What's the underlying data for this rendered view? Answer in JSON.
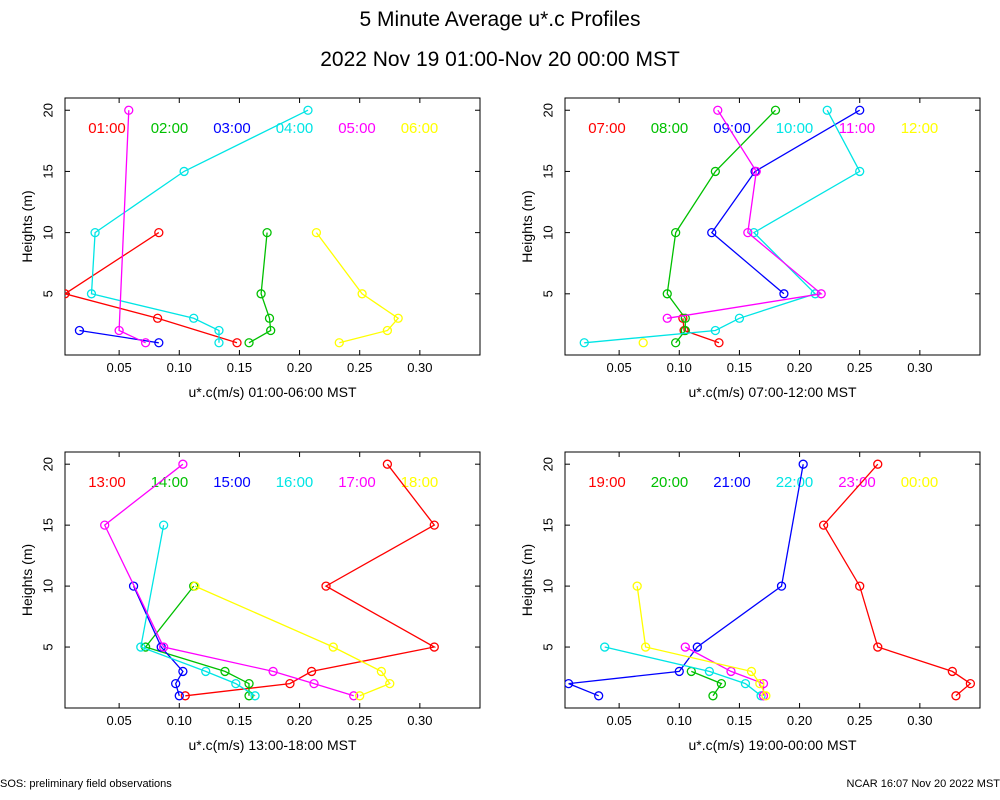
{
  "title": "5 Minute Average u*.c Profiles",
  "subtitle": "2022 Nov 19 01:00-Nov 20 00:00 MST",
  "footer_left": "SOS: preliminary field observations",
  "footer_right": "NCAR 16:07 Nov 20 2022 MST",
  "chart_data": [
    {
      "type": "line",
      "xlabel": "u*.c(m/s) 01:00-06:00 MST",
      "ylabel": "Heights (m)",
      "xlim": [
        0.005,
        0.35
      ],
      "ylim": [
        0,
        21
      ],
      "xticks": [
        "0.05",
        "0.10",
        "0.15",
        "0.20",
        "0.25",
        "0.30"
      ],
      "yticks": [
        "5",
        "10",
        "15",
        "20"
      ],
      "series": [
        {
          "name": "01:00",
          "color": "#ff0000",
          "points": [
            [
              0.148,
              1
            ],
            [
              0.082,
              3
            ],
            [
              0.005,
              5
            ],
            [
              0.083,
              10
            ]
          ]
        },
        {
          "name": "02:00",
          "color": "#00c000",
          "points": [
            [
              0.158,
              1
            ],
            [
              0.176,
              2
            ],
            [
              0.175,
              3
            ],
            [
              0.168,
              5
            ],
            [
              0.173,
              10
            ]
          ]
        },
        {
          "name": "03:00",
          "color": "#0000ff",
          "points": [
            [
              0.083,
              1
            ],
            [
              0.017,
              2
            ]
          ]
        },
        {
          "name": "04:00",
          "color": "#00e5e5",
          "points": [
            [
              0.133,
              1
            ],
            [
              0.133,
              2
            ],
            [
              0.112,
              3
            ],
            [
              0.027,
              5
            ],
            [
              0.03,
              10
            ],
            [
              0.104,
              15
            ],
            [
              0.207,
              20
            ]
          ]
        },
        {
          "name": "05:00",
          "color": "#ff00ff",
          "points": [
            [
              0.072,
              1
            ],
            [
              0.05,
              2
            ],
            [
              0.058,
              20
            ]
          ]
        },
        {
          "name": "06:00",
          "color": "#ffff00",
          "points": [
            [
              0.233,
              1
            ],
            [
              0.273,
              2
            ],
            [
              0.282,
              3
            ],
            [
              0.252,
              5
            ],
            [
              0.214,
              10
            ]
          ]
        }
      ]
    },
    {
      "type": "line",
      "xlabel": "u*.c(m/s) 07:00-12:00 MST",
      "ylabel": "Heights (m)",
      "xlim": [
        0.005,
        0.35
      ],
      "ylim": [
        0,
        21
      ],
      "xticks": [
        "0.05",
        "0.10",
        "0.15",
        "0.20",
        "0.25",
        "0.30"
      ],
      "yticks": [
        "5",
        "10",
        "15",
        "20"
      ],
      "series": [
        {
          "name": "07:00",
          "color": "#ff0000",
          "points": [
            [
              0.133,
              1
            ],
            [
              0.104,
              2
            ],
            [
              0.103,
              3
            ]
          ]
        },
        {
          "name": "08:00",
          "color": "#00c000",
          "points": [
            [
              0.097,
              1
            ],
            [
              0.105,
              2
            ],
            [
              0.105,
              3
            ],
            [
              0.09,
              5
            ],
            [
              0.097,
              10
            ],
            [
              0.13,
              15
            ],
            [
              0.18,
              20
            ]
          ]
        },
        {
          "name": "09:00",
          "color": "#0000ff",
          "points": [
            [
              0.187,
              5
            ],
            [
              0.127,
              10
            ],
            [
              0.163,
              15
            ],
            [
              0.25,
              20
            ]
          ]
        },
        {
          "name": "10:00",
          "color": "#00e5e5",
          "points": [
            [
              0.021,
              1
            ],
            [
              0.13,
              2
            ],
            [
              0.15,
              3
            ],
            [
              0.213,
              5
            ],
            [
              0.162,
              10
            ],
            [
              0.25,
              15
            ],
            [
              0.223,
              20
            ]
          ]
        },
        {
          "name": "11:00",
          "color": "#ff00ff",
          "points": [
            [
              0.09,
              3
            ],
            [
              0.218,
              5
            ],
            [
              0.157,
              10
            ],
            [
              0.164,
              15
            ],
            [
              0.132,
              20
            ]
          ]
        },
        {
          "name": "12:00",
          "color": "#ffff00",
          "points": [
            [
              0.07,
              1
            ]
          ]
        }
      ]
    },
    {
      "type": "line",
      "xlabel": "u*.c(m/s) 13:00-18:00 MST",
      "ylabel": "Heights (m)",
      "xlim": [
        0.005,
        0.35
      ],
      "ylim": [
        0,
        21
      ],
      "xticks": [
        "0.05",
        "0.10",
        "0.15",
        "0.20",
        "0.25",
        "0.30"
      ],
      "yticks": [
        "5",
        "10",
        "15",
        "20"
      ],
      "series": [
        {
          "name": "13:00",
          "color": "#ff0000",
          "points": [
            [
              0.105,
              1
            ],
            [
              0.192,
              2
            ],
            [
              0.21,
              3
            ],
            [
              0.312,
              5
            ],
            [
              0.222,
              10
            ],
            [
              0.312,
              15
            ],
            [
              0.273,
              20
            ]
          ]
        },
        {
          "name": "14:00",
          "color": "#00c000",
          "points": [
            [
              0.158,
              1
            ],
            [
              0.158,
              2
            ],
            [
              0.138,
              3
            ],
            [
              0.072,
              5
            ],
            [
              0.112,
              10
            ]
          ]
        },
        {
          "name": "15:00",
          "color": "#0000ff",
          "points": [
            [
              0.1,
              1
            ],
            [
              0.097,
              2
            ],
            [
              0.103,
              3
            ],
            [
              0.085,
              5
            ],
            [
              0.062,
              10
            ]
          ]
        },
        {
          "name": "16:00",
          "color": "#00e5e5",
          "points": [
            [
              0.163,
              1
            ],
            [
              0.147,
              2
            ],
            [
              0.122,
              3
            ],
            [
              0.068,
              5
            ],
            [
              0.087,
              15
            ]
          ]
        },
        {
          "name": "17:00",
          "color": "#ff00ff",
          "points": [
            [
              0.245,
              1
            ],
            [
              0.212,
              2
            ],
            [
              0.178,
              3
            ],
            [
              0.087,
              5
            ],
            [
              0.038,
              15
            ],
            [
              0.103,
              20
            ]
          ]
        },
        {
          "name": "18:00",
          "color": "#ffff00",
          "points": [
            [
              0.25,
              1
            ],
            [
              0.275,
              2
            ],
            [
              0.268,
              3
            ],
            [
              0.228,
              5
            ],
            [
              0.113,
              10
            ]
          ]
        }
      ]
    },
    {
      "type": "line",
      "xlabel": "u*.c(m/s) 19:00-00:00 MST",
      "ylabel": "Heights (m)",
      "xlim": [
        0.005,
        0.35
      ],
      "ylim": [
        0,
        21
      ],
      "xticks": [
        "0.05",
        "0.10",
        "0.15",
        "0.20",
        "0.25",
        "0.30"
      ],
      "yticks": [
        "5",
        "10",
        "15",
        "20"
      ],
      "series": [
        {
          "name": "19:00",
          "color": "#ff0000",
          "points": [
            [
              0.33,
              1
            ],
            [
              0.342,
              2
            ],
            [
              0.327,
              3
            ],
            [
              0.265,
              5
            ],
            [
              0.25,
              10
            ],
            [
              0.22,
              15
            ],
            [
              0.265,
              20
            ]
          ]
        },
        {
          "name": "20:00",
          "color": "#00c000",
          "points": [
            [
              0.128,
              1
            ],
            [
              0.135,
              2
            ],
            [
              0.11,
              3
            ]
          ]
        },
        {
          "name": "21:00",
          "color": "#0000ff",
          "points": [
            [
              0.033,
              1
            ],
            [
              0.008,
              2
            ],
            [
              0.1,
              3
            ],
            [
              0.115,
              5
            ],
            [
              0.185,
              10
            ],
            [
              0.203,
              20
            ]
          ]
        },
        {
          "name": "22:00",
          "color": "#00e5e5",
          "points": [
            [
              0.168,
              1
            ],
            [
              0.155,
              2
            ],
            [
              0.125,
              3
            ],
            [
              0.038,
              5
            ]
          ]
        },
        {
          "name": "23:00",
          "color": "#ff00ff",
          "points": [
            [
              0.17,
              1
            ],
            [
              0.17,
              2
            ],
            [
              0.143,
              3
            ],
            [
              0.105,
              5
            ]
          ]
        },
        {
          "name": "00:00",
          "color": "#ffff00",
          "points": [
            [
              0.172,
              1
            ],
            [
              0.167,
              2
            ],
            [
              0.16,
              3
            ],
            [
              0.072,
              5
            ],
            [
              0.065,
              10
            ]
          ]
        }
      ]
    }
  ]
}
